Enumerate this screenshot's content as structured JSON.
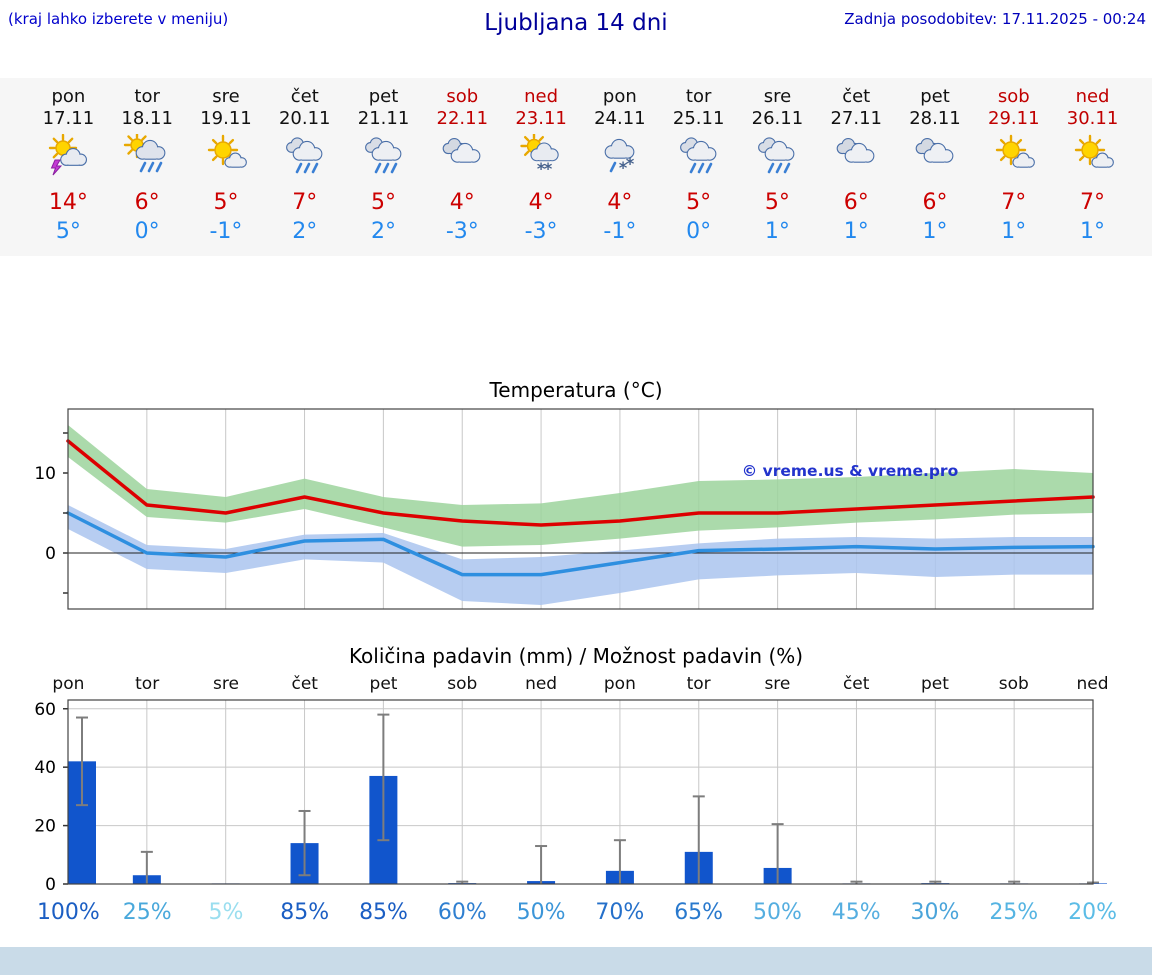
{
  "header": {
    "hint": "(kraj lahko izberete v meniju)",
    "title": "Ljubljana 14 dni",
    "updated": "Zadnja posodobitev: 17.11.2025 - 00:24"
  },
  "colors": {
    "tmax_text": "#cc0000",
    "tmin_text": "#2288ee",
    "weekend_text": "#c00000"
  },
  "days": [
    {
      "name": "pon",
      "date": "17.11",
      "weekend": false,
      "icon": "storm-sun",
      "tmax": "14°",
      "tmin": "5°",
      "prob": "100%",
      "prob_color": "#1b5ec3"
    },
    {
      "name": "tor",
      "date": "18.11",
      "weekend": false,
      "icon": "rain-sun",
      "tmax": "6°",
      "tmin": "0°",
      "prob": "25%",
      "prob_color": "#49a8db"
    },
    {
      "name": "sre",
      "date": "19.11",
      "weekend": false,
      "icon": "sun-cloud",
      "tmax": "5°",
      "tmin": "-1°",
      "prob": "5%",
      "prob_color": "#9adeef"
    },
    {
      "name": "čet",
      "date": "20.11",
      "weekend": false,
      "icon": "rain",
      "tmax": "7°",
      "tmin": "2°",
      "prob": "85%",
      "prob_color": "#1b5ec3"
    },
    {
      "name": "pet",
      "date": "21.11",
      "weekend": false,
      "icon": "rain",
      "tmax": "5°",
      "tmin": "2°",
      "prob": "85%",
      "prob_color": "#1b5ec3"
    },
    {
      "name": "sob",
      "date": "22.11",
      "weekend": true,
      "icon": "cloudy",
      "tmax": "4°",
      "tmin": "-3°",
      "prob": "60%",
      "prob_color": "#2f7fd0"
    },
    {
      "name": "ned",
      "date": "23.11",
      "weekend": true,
      "icon": "snow-sun",
      "tmax": "4°",
      "tmin": "-3°",
      "prob": "50%",
      "prob_color": "#3b95d8"
    },
    {
      "name": "pon",
      "date": "24.11",
      "weekend": false,
      "icon": "sleet",
      "tmax": "4°",
      "tmin": "-1°",
      "prob": "70%",
      "prob_color": "#2570ca"
    },
    {
      "name": "tor",
      "date": "25.11",
      "weekend": false,
      "icon": "rain",
      "tmax": "5°",
      "tmin": "0°",
      "prob": "65%",
      "prob_color": "#2979cd"
    },
    {
      "name": "sre",
      "date": "26.11",
      "weekend": false,
      "icon": "rain",
      "tmax": "5°",
      "tmin": "1°",
      "prob": "50%",
      "prob_color": "#55aee0"
    },
    {
      "name": "čet",
      "date": "27.11",
      "weekend": false,
      "icon": "cloudy",
      "tmax": "6°",
      "tmin": "1°",
      "prob": "45%",
      "prob_color": "#55aee0"
    },
    {
      "name": "pet",
      "date": "28.11",
      "weekend": false,
      "icon": "cloudy",
      "tmax": "6°",
      "tmin": "1°",
      "prob": "30%",
      "prob_color": "#4aa4da"
    },
    {
      "name": "sob",
      "date": "29.11",
      "weekend": true,
      "icon": "sun-cloud",
      "tmax": "7°",
      "tmin": "1°",
      "prob": "25%",
      "prob_color": "#55b4e2"
    },
    {
      "name": "ned",
      "date": "30.11",
      "weekend": true,
      "icon": "sun-cloud",
      "tmax": "7°",
      "tmin": "1°",
      "prob": "20%",
      "prob_color": "#5bbce6"
    }
  ],
  "chart_data": [
    {
      "type": "line",
      "title": "Temperatura (°C)",
      "x_labels": [
        "pon",
        "tor",
        "sre",
        "čet",
        "pet",
        "sob",
        "ned",
        "pon",
        "tor",
        "sre",
        "čet",
        "pet",
        "sob",
        "ned"
      ],
      "ylim": [
        -7,
        18
      ],
      "yticks": [
        0,
        10
      ],
      "grid": true,
      "watermark": "© vreme.us & vreme.pro",
      "series": [
        {
          "name": "max-temp",
          "color": "#dd0000",
          "values": [
            14,
            6,
            5,
            7,
            5,
            4,
            3.5,
            4,
            5,
            5,
            5.5,
            6,
            6.5,
            7
          ]
        },
        {
          "name": "min-temp",
          "color": "#2e8fe0",
          "values": [
            5,
            0,
            -0.5,
            1.5,
            1.7,
            -2.7,
            -2.7,
            -1.2,
            0.3,
            0.5,
            0.8,
            0.5,
            0.7,
            0.8
          ]
        }
      ],
      "bands": [
        {
          "name": "max-temp-range",
          "color": "#9cd49c",
          "hi": [
            16,
            8,
            7,
            9.3,
            7,
            6,
            6.2,
            7.5,
            9,
            9.2,
            9.5,
            10,
            10.5,
            10
          ],
          "lo": [
            12,
            4.5,
            3.8,
            5.5,
            3.2,
            0.8,
            1,
            1.8,
            2.8,
            3.2,
            3.8,
            4.2,
            4.8,
            5
          ]
        },
        {
          "name": "min-temp-range",
          "color": "#aac4ee",
          "hi": [
            6,
            1,
            0.5,
            2.3,
            2.5,
            -0.8,
            -0.5,
            0.3,
            1.2,
            1.8,
            2,
            1.8,
            2,
            2
          ],
          "lo": [
            3,
            -2,
            -2.5,
            -0.8,
            -1.2,
            -6,
            -6.5,
            -5,
            -3.3,
            -2.8,
            -2.5,
            -3,
            -2.7,
            -2.7
          ]
        }
      ]
    },
    {
      "type": "bar",
      "title": "Količina padavin (mm) / Možnost padavin (%)",
      "categories": [
        "pon",
        "tor",
        "sre",
        "čet",
        "pet",
        "sob",
        "ned",
        "pon",
        "tor",
        "sre",
        "čet",
        "pet",
        "sob",
        "ned"
      ],
      "values": [
        42,
        3,
        0.2,
        14,
        37,
        0.3,
        1,
        4.5,
        11,
        5.5,
        0.2,
        0.3,
        0.2,
        0.2
      ],
      "whisker_low": [
        27,
        0,
        0,
        3,
        15,
        0,
        0,
        0,
        0,
        0,
        0,
        0,
        0,
        0
      ],
      "whisker_high": [
        57,
        11,
        0,
        25,
        58,
        0.8,
        13,
        15,
        30,
        20.5,
        0.8,
        0.8,
        0.8,
        0.5
      ],
      "yticks": [
        0,
        20,
        40,
        60
      ],
      "ylim": [
        0,
        63
      ],
      "grid": true,
      "bar_color": "#1155cc",
      "whisker_color": "#7d7d7d",
      "probabilities": [
        "100%",
        "25%",
        "5%",
        "85%",
        "85%",
        "60%",
        "50%",
        "70%",
        "65%",
        "50%",
        "45%",
        "30%",
        "25%",
        "20%"
      ]
    }
  ]
}
